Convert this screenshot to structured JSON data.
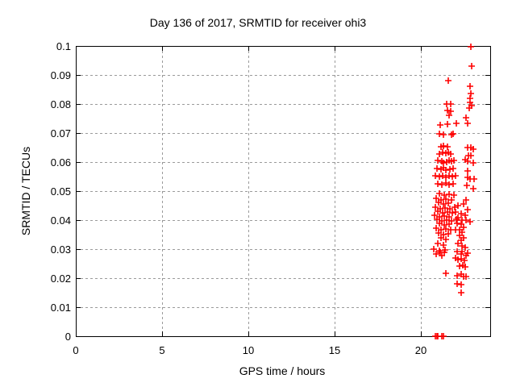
{
  "chart_data": {
    "type": "scatter",
    "title": "Day 136 of 2017, SRMTID for receiver ohi3",
    "xlabel": "GPS time / hours",
    "ylabel": "SRMTID / TECUs",
    "xlim": [
      0,
      24
    ],
    "ylim": [
      0,
      0.1
    ],
    "xticks": [
      0,
      5,
      10,
      15,
      20
    ],
    "yticks": [
      0,
      0.01,
      0.02,
      0.03,
      0.04,
      0.05,
      0.06,
      0.07,
      0.08,
      0.09,
      0.1
    ],
    "xtick_labels": [
      "0",
      "5",
      "10",
      "15",
      "20"
    ],
    "ytick_labels": [
      "0",
      "0.01",
      "0.02",
      "0.03",
      "0.04",
      "0.05",
      "0.06",
      "0.07",
      "0.08",
      "0.09",
      "0.1"
    ],
    "grid": true,
    "legend": "none",
    "marker": {
      "shape": "plus",
      "color": "#ff0000",
      "size": 8
    },
    "series": [
      {
        "name": "SRMTID",
        "points": [
          [
            22.88,
            0.0996
          ],
          [
            22.92,
            0.093
          ],
          [
            21.55,
            0.0881
          ],
          [
            22.84,
            0.086
          ],
          [
            22.86,
            0.0835
          ],
          [
            22.81,
            0.0819
          ],
          [
            21.47,
            0.0801
          ],
          [
            21.71,
            0.0801
          ],
          [
            22.81,
            0.0805
          ],
          [
            22.94,
            0.0794
          ],
          [
            22.78,
            0.0787
          ],
          [
            21.52,
            0.0778
          ],
          [
            21.71,
            0.0775
          ],
          [
            21.63,
            0.0761
          ],
          [
            22.61,
            0.0752
          ],
          [
            21.1,
            0.0728
          ],
          [
            21.52,
            0.0731
          ],
          [
            22.03,
            0.0733
          ],
          [
            22.69,
            0.0734
          ],
          [
            21.04,
            0.0697
          ],
          [
            21.29,
            0.0695
          ],
          [
            21.74,
            0.0694
          ],
          [
            21.84,
            0.0697
          ],
          [
            22.69,
            0.0649
          ],
          [
            22.89,
            0.0649
          ],
          [
            21.16,
            0.0654
          ],
          [
            21.29,
            0.0656
          ],
          [
            21.52,
            0.0654
          ],
          [
            21.06,
            0.0629
          ],
          [
            21.26,
            0.0632
          ],
          [
            21.44,
            0.0631
          ],
          [
            21.57,
            0.0632
          ],
          [
            21.72,
            0.0629
          ],
          [
            22.72,
            0.0623
          ],
          [
            22.89,
            0.0621
          ],
          [
            20.97,
            0.0605
          ],
          [
            21.21,
            0.0603
          ],
          [
            21.29,
            0.0598
          ],
          [
            21.47,
            0.0601
          ],
          [
            21.6,
            0.0605
          ],
          [
            21.75,
            0.0603
          ],
          [
            21.91,
            0.0605
          ],
          [
            22.53,
            0.0607
          ],
          [
            22.69,
            0.0603
          ],
          [
            20.9,
            0.0577
          ],
          [
            21.13,
            0.0575
          ],
          [
            21.29,
            0.058
          ],
          [
            21.44,
            0.0573
          ],
          [
            21.68,
            0.0575
          ],
          [
            21.84,
            0.0577
          ],
          [
            22.69,
            0.057
          ],
          [
            20.82,
            0.0552
          ],
          [
            21.05,
            0.0549
          ],
          [
            21.26,
            0.0552
          ],
          [
            21.44,
            0.0547
          ],
          [
            21.6,
            0.0552
          ],
          [
            21.79,
            0.0549
          ],
          [
            21.99,
            0.0552
          ],
          [
            22.69,
            0.0547
          ],
          [
            22.84,
            0.0543
          ],
          [
            20.97,
            0.0524
          ],
          [
            21.21,
            0.0521
          ],
          [
            21.41,
            0.0527
          ],
          [
            21.6,
            0.0521
          ],
          [
            21.84,
            0.0524
          ],
          [
            22.66,
            0.0519
          ],
          [
            21.06,
            0.0491
          ],
          [
            21.34,
            0.0487
          ],
          [
            21.6,
            0.049
          ],
          [
            21.9,
            0.0486
          ],
          [
            20.88,
            0.0474
          ],
          [
            21.16,
            0.047
          ],
          [
            21.44,
            0.0473
          ],
          [
            21.76,
            0.0469
          ],
          [
            21.01,
            0.046
          ],
          [
            21.28,
            0.0456
          ],
          [
            21.58,
            0.0459
          ],
          [
            20.83,
            0.0444
          ],
          [
            21.11,
            0.044
          ],
          [
            21.37,
            0.0443
          ],
          [
            21.67,
            0.0439
          ],
          [
            21.93,
            0.0444
          ],
          [
            20.95,
            0.043
          ],
          [
            21.25,
            0.0426
          ],
          [
            21.51,
            0.0429
          ],
          [
            21.81,
            0.0425
          ],
          [
            20.78,
            0.0416
          ],
          [
            21.04,
            0.0412
          ],
          [
            21.34,
            0.0415
          ],
          [
            21.62,
            0.0411
          ],
          [
            20.92,
            0.0402
          ],
          [
            21.18,
            0.0398
          ],
          [
            21.48,
            0.0401
          ],
          [
            21.74,
            0.0397
          ],
          [
            22.02,
            0.0402
          ],
          [
            21.06,
            0.0388
          ],
          [
            21.32,
            0.0384
          ],
          [
            21.62,
            0.0387
          ],
          [
            20.86,
            0.0371
          ],
          [
            21.16,
            0.0367
          ],
          [
            21.42,
            0.037
          ],
          [
            21.72,
            0.0366
          ],
          [
            21.01,
            0.0355
          ],
          [
            21.28,
            0.0351
          ],
          [
            21.58,
            0.0354
          ],
          [
            21.16,
            0.0338
          ],
          [
            21.44,
            0.0334
          ],
          [
            20.95,
            0.0319
          ],
          [
            21.3,
            0.0315
          ],
          [
            20.74,
            0.0299
          ],
          [
            21.06,
            0.0295
          ],
          [
            21.39,
            0.0298
          ],
          [
            20.88,
            0.0283
          ],
          [
            21.22,
            0.0279
          ],
          [
            22.61,
            0.0469
          ],
          [
            22.46,
            0.0455
          ],
          [
            22.14,
            0.045
          ],
          [
            22.69,
            0.0436
          ],
          [
            21.99,
            0.0427
          ],
          [
            22.3,
            0.0422
          ],
          [
            22.53,
            0.0418
          ],
          [
            22.14,
            0.0408
          ],
          [
            22.38,
            0.0399
          ],
          [
            22.61,
            0.0399
          ],
          [
            22.84,
            0.0394
          ],
          [
            22.07,
            0.039
          ],
          [
            22.3,
            0.0385
          ],
          [
            22.46,
            0.0376
          ],
          [
            22.22,
            0.0367
          ],
          [
            21.99,
            0.0367
          ],
          [
            22.38,
            0.0357
          ],
          [
            22.22,
            0.0348
          ],
          [
            22.46,
            0.0339
          ],
          [
            22.3,
            0.033
          ],
          [
            22.14,
            0.032
          ],
          [
            22.38,
            0.0311
          ],
          [
            22.53,
            0.0306
          ],
          [
            22.07,
            0.0293
          ],
          [
            22.3,
            0.0283
          ],
          [
            22.61,
            0.0279
          ],
          [
            21.99,
            0.0269
          ],
          [
            23.04,
            0.0645
          ],
          [
            23.02,
            0.0598
          ],
          [
            23.06,
            0.0541
          ],
          [
            23.0,
            0.0509
          ],
          [
            21.1,
            0.029
          ],
          [
            21.36,
            0.0288
          ],
          [
            22.38,
            0.0293
          ],
          [
            22.69,
            0.0286
          ],
          [
            22.14,
            0.0265
          ],
          [
            22.3,
            0.0268
          ],
          [
            22.5,
            0.0262
          ],
          [
            22.22,
            0.0242
          ],
          [
            22.41,
            0.0244
          ],
          [
            22.53,
            0.024
          ],
          [
            21.41,
            0.0216
          ],
          [
            22.09,
            0.0209
          ],
          [
            22.3,
            0.0214
          ],
          [
            22.45,
            0.0206
          ],
          [
            22.61,
            0.0205
          ],
          [
            22.09,
            0.0181
          ],
          [
            22.3,
            0.0177
          ],
          [
            22.34,
            0.0149
          ],
          [
            20.84,
            0.0
          ],
          [
            20.9,
            0.0
          ],
          [
            20.96,
            0.0
          ],
          [
            21.18,
            0.0
          ],
          [
            21.27,
            0.0
          ]
        ]
      }
    ]
  },
  "colors": {
    "background": "#ffffff",
    "axis": "#000000",
    "grid": "#9b9b9b",
    "marker": "#ff0000",
    "text": "#000000"
  }
}
